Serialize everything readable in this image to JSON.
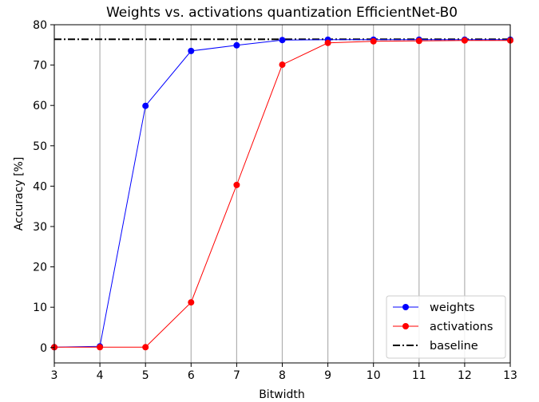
{
  "chart_data": {
    "type": "line",
    "title": "Weights vs. activations quantization EfficientNet-B0",
    "xlabel": "Bitwidth",
    "ylabel": "Accuracy [%]",
    "xlim": [
      3,
      13
    ],
    "ylim": [
      -3.8,
      80
    ],
    "x_ticks": [
      3,
      4,
      5,
      6,
      7,
      8,
      9,
      10,
      11,
      12,
      13
    ],
    "y_ticks": [
      0,
      10,
      20,
      30,
      40,
      50,
      60,
      70,
      80
    ],
    "grid": "vertical",
    "legend_position": "lower-right",
    "x": [
      3,
      4,
      5,
      6,
      7,
      8,
      9,
      10,
      11,
      12,
      13
    ],
    "series": [
      {
        "name": "weights",
        "color": "#0000ff",
        "marker": "circle",
        "values": [
          0.1,
          0.3,
          59.9,
          73.5,
          74.9,
          76.2,
          76.3,
          76.3,
          76.3,
          76.3,
          76.3
        ]
      },
      {
        "name": "activations",
        "color": "#ff0000",
        "marker": "circle",
        "values": [
          0.1,
          0.1,
          0.1,
          11.2,
          40.3,
          70.1,
          75.5,
          75.9,
          76.0,
          76.1,
          76.1
        ]
      }
    ],
    "baseline": {
      "name": "baseline",
      "value": 76.4,
      "color": "#000000",
      "style": "dash-dot"
    }
  }
}
